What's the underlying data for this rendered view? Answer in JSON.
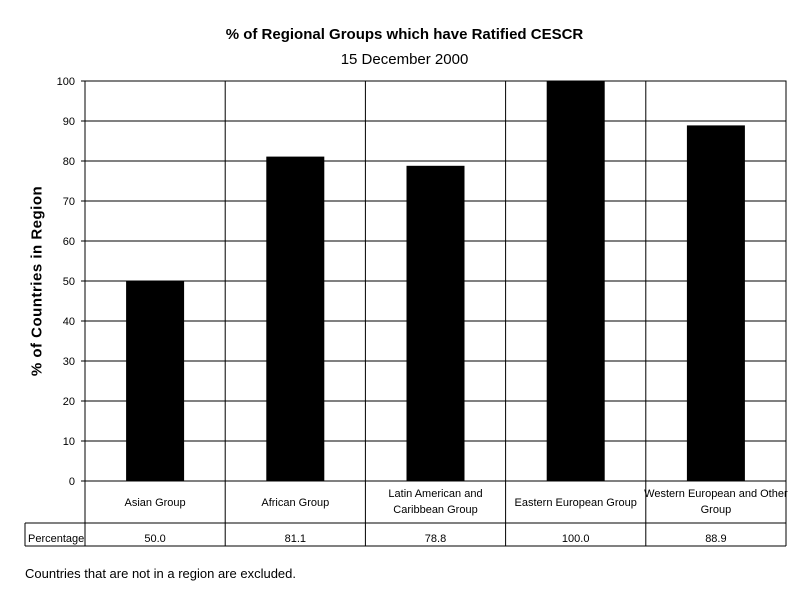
{
  "chart_data": {
    "type": "bar",
    "title": "% of Regional Groups which have Ratified CESCR",
    "subtitle": "15 December 2000",
    "ylabel": "% of Countries in Region",
    "xlabel": "",
    "ylim": [
      0,
      100
    ],
    "yticks": [
      0,
      10,
      20,
      30,
      40,
      50,
      60,
      70,
      80,
      90,
      100
    ],
    "grid": true,
    "categories": [
      [
        "Asian Group"
      ],
      [
        "African Group"
      ],
      [
        "Latin American and",
        "Caribbean Group"
      ],
      [
        "Eastern European Group"
      ],
      [
        "Western European and Other",
        "Group"
      ]
    ],
    "values": [
      50.0,
      81.1,
      78.8,
      100.0,
      88.9
    ],
    "value_labels": [
      "50.0",
      "81.1",
      "78.8",
      "100.0",
      "88.9"
    ],
    "table_row_label": "Percentage",
    "bar_color": "#000000"
  },
  "footnote": "Countries that are not in a region are excluded."
}
